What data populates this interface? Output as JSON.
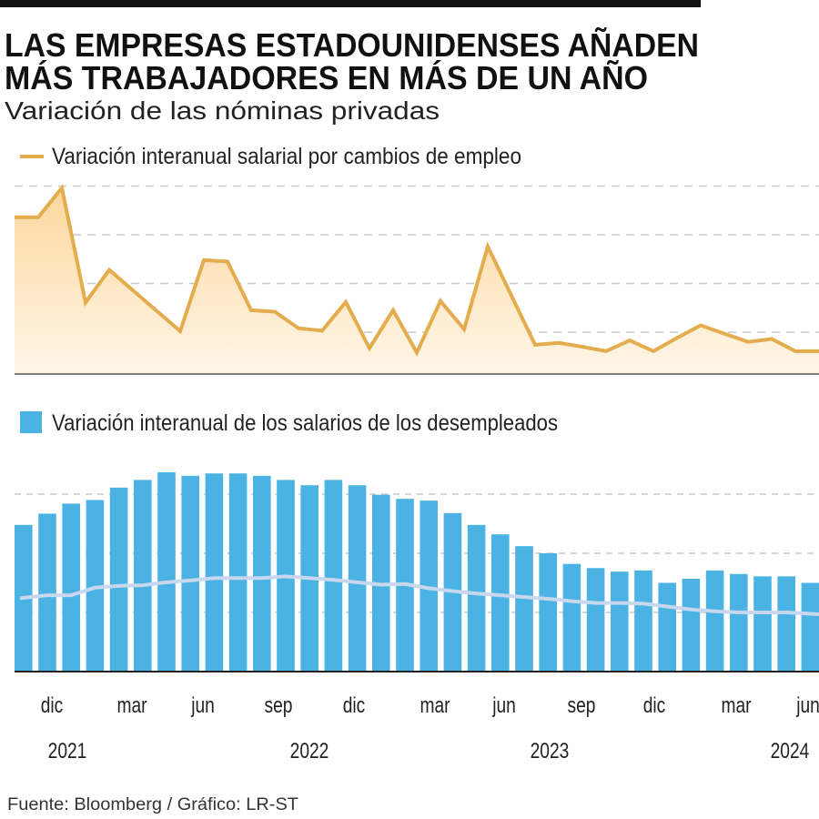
{
  "header": {
    "title_line1": "LAS EMPRESAS ESTADOUNIDENSES AÑADEN",
    "title_line2": "MÁS TRABAJADORES EN MÁS DE UN AÑO",
    "subtitle": "Variación de las nóminas privadas"
  },
  "source": "Fuente: Bloomberg / Gráfico: LR-ST",
  "colors": {
    "top_line": "#e3ac4d",
    "top_fill_top": "#fcd79c",
    "top_fill_bottom": "#fff6e8",
    "bars": "#4ab3e3",
    "bar_overlay_line": "#c8d6ee",
    "grid": "#c8c8c8",
    "axis": "#222222"
  },
  "chart_data": [
    {
      "type": "area",
      "legend": "Variación interanual salarial por cambios de empleo",
      "grid": true,
      "ylim": [
        0.15,
        4.0
      ],
      "yunit": "gridline steps (no values printed)",
      "values": [
        3.36,
        3.36,
        3.96,
        1.61,
        2.28,
        1.86,
        1.44,
        1.02,
        2.48,
        2.45,
        1.45,
        1.42,
        1.08,
        1.03,
        1.62,
        0.67,
        1.45,
        0.58,
        1.64,
        1.06,
        2.76,
        1.75,
        0.74,
        0.78,
        0.7,
        0.61,
        0.83,
        0.61,
        0.88,
        1.14,
        0.97,
        0.8,
        0.86,
        0.61,
        0.61
      ]
    },
    {
      "type": "bar",
      "legend": "Variación interanual de los salarios de los desempleados",
      "grid": true,
      "ylim": [
        0,
        3.4
      ],
      "yunit": "gridline steps (no values printed)",
      "values": [
        2.48,
        2.67,
        2.84,
        2.9,
        3.11,
        3.24,
        3.37,
        3.31,
        3.35,
        3.35,
        3.31,
        3.24,
        3.15,
        3.24,
        3.15,
        2.99,
        2.92,
        2.89,
        2.68,
        2.48,
        2.32,
        2.12,
        2.0,
        1.82,
        1.75,
        1.69,
        1.71,
        1.5,
        1.57,
        1.71,
        1.65,
        1.61,
        1.61,
        1.5
      ],
      "overlay_line": [
        1.24,
        1.29,
        1.29,
        1.42,
        1.45,
        1.46,
        1.51,
        1.54,
        1.58,
        1.58,
        1.58,
        1.61,
        1.58,
        1.55,
        1.51,
        1.47,
        1.48,
        1.41,
        1.36,
        1.32,
        1.29,
        1.26,
        1.23,
        1.19,
        1.16,
        1.16,
        1.15,
        1.1,
        1.05,
        1.02,
        1.0,
        1.0,
        1.0,
        0.97
      ]
    }
  ],
  "x_axis": {
    "month_ticks": [
      "dic",
      "mar",
      "jun",
      "sep",
      "dic",
      "mar",
      "jun",
      "sep",
      "dic",
      "mar",
      "jun"
    ],
    "year_ticks": [
      "2021",
      "2022",
      "2023",
      "2024"
    ]
  }
}
